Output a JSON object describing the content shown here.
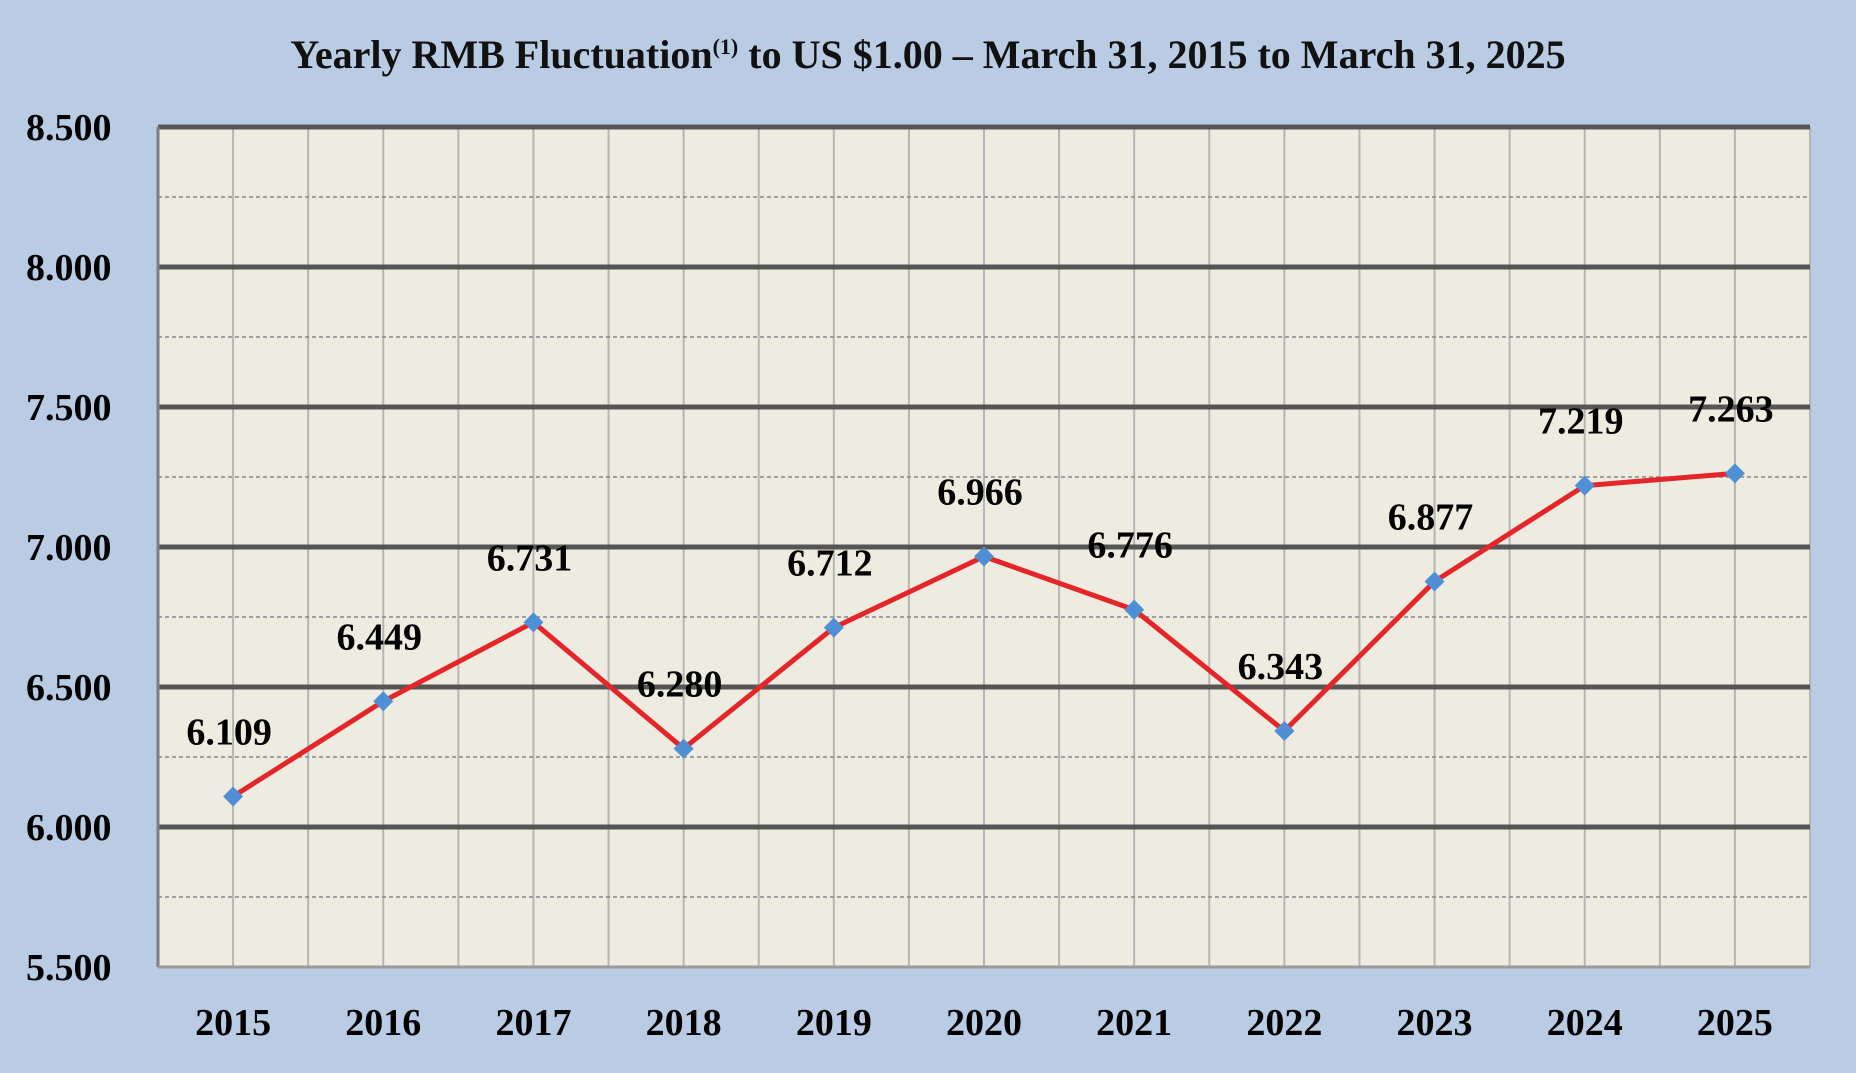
{
  "chart_data": {
    "type": "line",
    "title": {
      "main": "Yearly RMB Fluctuation",
      "superscript": "(1)",
      "rest": " to US $1.00 – March 31, 2015 to March 31, 2025"
    },
    "xlabel": "",
    "ylabel": "",
    "categories": [
      "2015",
      "2016",
      "2017",
      "2018",
      "2019",
      "2020",
      "2021",
      "2022",
      "2023",
      "2024",
      "2025"
    ],
    "series": [
      {
        "values": [
          6.109,
          6.449,
          6.731,
          6.28,
          6.712,
          6.966,
          6.776,
          6.343,
          6.877,
          7.219,
          7.263
        ],
        "data_labels": [
          "6.109",
          "6.449",
          "6.731",
          "6.280",
          "6.712",
          "6.966",
          "6.776",
          "6.343",
          "6.877",
          "7.219",
          "7.263"
        ],
        "line_color": "#e4262a",
        "marker_color": "#4f8fd6",
        "marker": "diamond"
      }
    ],
    "ylim": [
      5.5,
      8.5
    ],
    "yticks": [
      5.5,
      6.0,
      6.5,
      7.0,
      7.5,
      8.0,
      8.5
    ],
    "ytick_labels": [
      "5.500",
      "6.000",
      "6.500",
      "7.000",
      "7.500",
      "8.000",
      "8.500"
    ],
    "minor_gridlines": [
      5.75,
      6.25,
      6.75,
      7.25,
      7.75,
      8.25
    ],
    "grid": true,
    "legend": "none",
    "colors": {
      "page_background": "#b9cce4",
      "plot_background": "#eeebe0",
      "major_grid": "#555555",
      "minor_grid": "#888888",
      "vertical_grid": "#b5b5b5"
    }
  }
}
